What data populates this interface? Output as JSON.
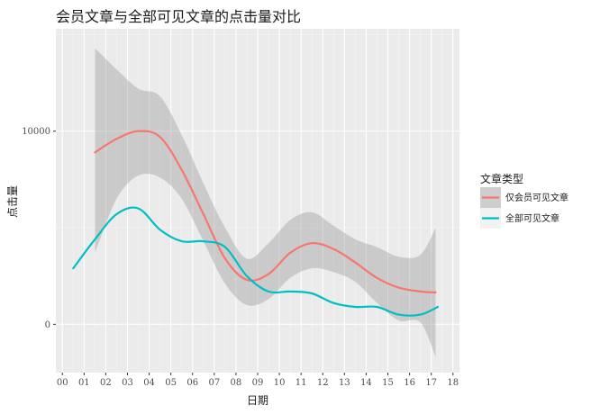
{
  "chart_data": {
    "type": "line",
    "title": "会员文章与全部可见文章的点击量对比",
    "xlabel": "日期",
    "ylabel": "点击量",
    "x_tick_labels": [
      "00",
      "01",
      "02",
      "03",
      "04",
      "05",
      "06",
      "07",
      "08",
      "09",
      "10",
      "11",
      "12",
      "13",
      "14",
      "15",
      "16",
      "17",
      "18"
    ],
    "y_ticks": [
      0,
      10000
    ],
    "y_tick_labels": [
      "0",
      "10000"
    ],
    "xlim": [
      -0.3,
      18.3
    ],
    "ylim": [
      -2500,
      15300
    ],
    "grid": true,
    "legend_title": "文章类型",
    "legend_position": "right",
    "series": [
      {
        "name": "仅会员可见文章",
        "color": "#F8766D",
        "x": [
          1.5,
          2.5,
          3.5,
          4.5,
          5.5,
          6.5,
          7.5,
          8.5,
          9.5,
          10.5,
          11.5,
          12.5,
          13.5,
          14.5,
          15.5,
          16.5,
          17.2
        ],
        "y": [
          8900,
          9600,
          10000,
          9700,
          8000,
          5700,
          3400,
          2300,
          2600,
          3700,
          4200,
          3900,
          3200,
          2400,
          1900,
          1700,
          1650
        ],
        "band_low": [
          3700,
          6500,
          7700,
          7600,
          6500,
          4300,
          2100,
          1000,
          1300,
          2400,
          2900,
          2700,
          2200,
          1100,
          200,
          100,
          -1700
        ],
        "band_high": [
          14300,
          13200,
          12200,
          11800,
          9800,
          7300,
          5000,
          3400,
          4200,
          5400,
          5800,
          5100,
          4400,
          4000,
          3500,
          3600,
          5000
        ]
      },
      {
        "name": "全部可见文章",
        "color": "#00BFC4",
        "x": [
          0.5,
          1.5,
          2.5,
          3.5,
          4.5,
          5.5,
          6.5,
          7.5,
          8.5,
          9.5,
          10.5,
          11.5,
          12.5,
          13.5,
          14.5,
          15.5,
          16.5,
          17.3
        ],
        "y": [
          2900,
          4400,
          5700,
          6000,
          4900,
          4300,
          4300,
          4000,
          2500,
          1700,
          1700,
          1600,
          1100,
          900,
          900,
          500,
          500,
          900
        ]
      }
    ]
  }
}
